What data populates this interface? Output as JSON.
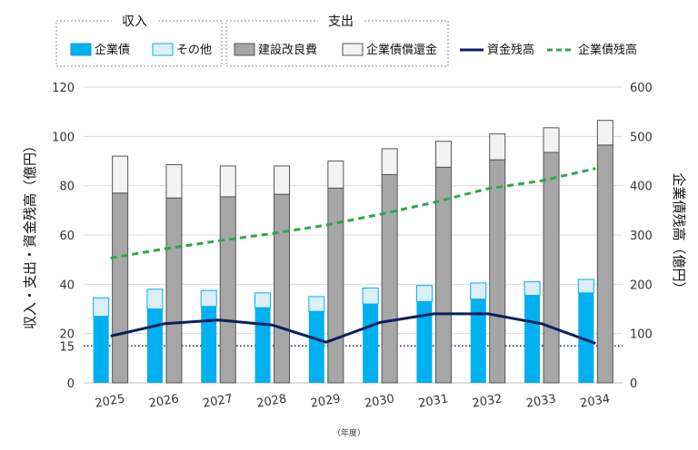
{
  "chart_data": {
    "type": "bar+line",
    "categories": [
      "2025",
      "2026",
      "2027",
      "2028",
      "2029",
      "2030",
      "2031",
      "2032",
      "2033",
      "2034"
    ],
    "income": {
      "group_label": "収入",
      "series": [
        {
          "name": "企業債",
          "values": [
            27,
            30,
            31,
            30.5,
            29,
            32,
            33,
            34,
            35.5,
            36.5
          ],
          "color": "#00b0f0"
        },
        {
          "name": "その他",
          "values": [
            7.5,
            8,
            6.5,
            6,
            6,
            6.5,
            6.5,
            6.5,
            5.5,
            5.5
          ],
          "color": "#dceef8"
        }
      ]
    },
    "expenditure": {
      "group_label": "支出",
      "series": [
        {
          "name": "建設改良費",
          "values": [
            77,
            75,
            75.5,
            76.5,
            79,
            84.5,
            87.5,
            90.5,
            93.5,
            96.5
          ],
          "color": "#a6a6a6"
        },
        {
          "name": "企業債償還金",
          "values": [
            15,
            13.5,
            12.5,
            11.5,
            11,
            10.5,
            10.5,
            10.5,
            10,
            10
          ],
          "color": "#f2f2f2"
        }
      ]
    },
    "lines": [
      {
        "name": "資金残高",
        "axis": "left",
        "values": [
          19,
          24,
          25.5,
          23.5,
          16.5,
          24.5,
          28,
          28,
          24,
          16
        ],
        "color": "#0b1f5c",
        "style": "solid"
      },
      {
        "name": "企業債残高",
        "axis": "right",
        "values": [
          253,
          272,
          288,
          303,
          320,
          342,
          366,
          394,
          410,
          435
        ],
        "color": "#2aa84a",
        "style": "dashed"
      }
    ],
    "reference_line": {
      "value": 15,
      "label": "15",
      "color": "#0b1f5c",
      "style": "dotted"
    },
    "left_axis": {
      "label": "収入・支出・資金残高（億円）",
      "min": 0,
      "max": 120,
      "ticks": [
        "0",
        "20",
        "40",
        "60",
        "80",
        "100",
        "120"
      ]
    },
    "right_axis": {
      "label": "企業債残高（億円）",
      "min": 0,
      "max": 600,
      "ticks": [
        "0",
        "100",
        "200",
        "300",
        "400",
        "500",
        "600"
      ]
    },
    "xlabel": "（年度）",
    "legend_position": "top"
  }
}
